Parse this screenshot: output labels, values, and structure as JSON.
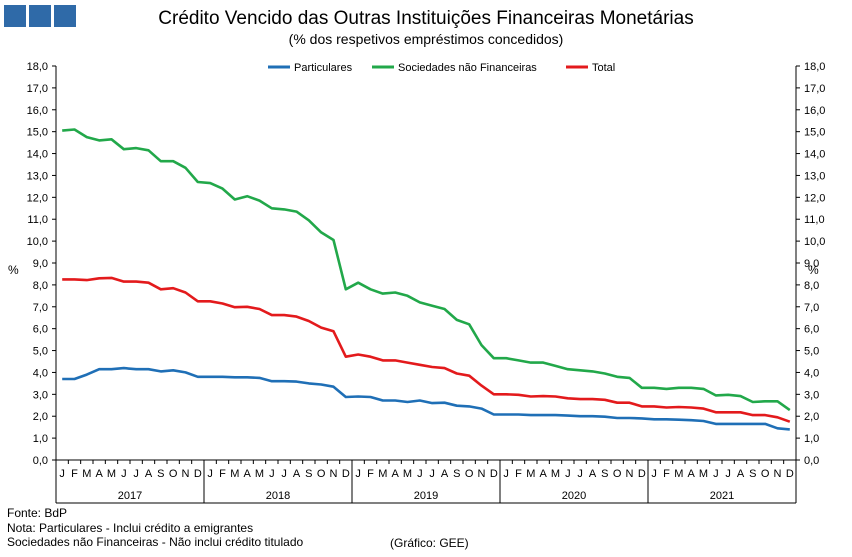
{
  "chart_data": {
    "type": "line",
    "title": "Crédito Vencido das Outras Instituições Financeiras Monetárias",
    "subtitle": "(% dos respetivos empréstimos concedidos)",
    "ylabel": "%",
    "ylabel_right": "%",
    "ylim": [
      0,
      18
    ],
    "yticks": [
      "0,0",
      "1,0",
      "2,0",
      "3,0",
      "4,0",
      "5,0",
      "6,0",
      "7,0",
      "8,0",
      "9,0",
      "10,0",
      "11,0",
      "12,0",
      "13,0",
      "14,0",
      "15,0",
      "16,0",
      "17,0",
      "18,0"
    ],
    "month_labels": [
      "J",
      "F",
      "M",
      "A",
      "M",
      "J",
      "J",
      "A",
      "S",
      "O",
      "N",
      "D"
    ],
    "years": [
      "2017",
      "2018",
      "2019",
      "2020",
      "2021"
    ],
    "legend": [
      "Particulares",
      "Sociedades não Financeiras",
      "Total"
    ],
    "series": [
      {
        "name": "Particulares",
        "color": "#1f6fb6",
        "values": [
          3.7,
          3.7,
          3.9,
          4.15,
          4.15,
          4.2,
          4.15,
          4.15,
          4.05,
          4.1,
          4.0,
          3.8,
          3.8,
          3.8,
          3.78,
          3.78,
          3.75,
          3.6,
          3.6,
          3.58,
          3.5,
          3.45,
          3.35,
          2.88,
          2.9,
          2.88,
          2.72,
          2.72,
          2.65,
          2.72,
          2.6,
          2.62,
          2.48,
          2.45,
          2.35,
          2.08,
          2.08,
          2.08,
          2.05,
          2.05,
          2.05,
          2.03,
          2.0,
          2.0,
          1.98,
          1.92,
          1.92,
          1.9,
          1.86,
          1.86,
          1.84,
          1.82,
          1.78,
          1.65,
          1.65,
          1.65,
          1.65,
          1.65,
          1.45,
          1.4
        ]
      },
      {
        "name": "Sociedades não Financeiras",
        "color": "#22a84a",
        "values": [
          15.05,
          15.1,
          14.75,
          14.6,
          14.65,
          14.2,
          14.25,
          14.15,
          13.65,
          13.65,
          13.35,
          12.7,
          12.65,
          12.4,
          11.9,
          12.05,
          11.85,
          11.5,
          11.45,
          11.35,
          10.95,
          10.4,
          10.05,
          7.8,
          8.1,
          7.8,
          7.6,
          7.65,
          7.5,
          7.2,
          7.05,
          6.9,
          6.4,
          6.2,
          5.25,
          4.65,
          4.65,
          4.55,
          4.45,
          4.45,
          4.3,
          4.15,
          4.1,
          4.05,
          3.95,
          3.8,
          3.75,
          3.3,
          3.3,
          3.25,
          3.3,
          3.3,
          3.25,
          2.95,
          2.98,
          2.92,
          2.65,
          2.68,
          2.68,
          2.28
        ]
      },
      {
        "name": "Total",
        "color": "#e31a1c",
        "values": [
          8.25,
          8.25,
          8.22,
          8.3,
          8.32,
          8.15,
          8.15,
          8.1,
          7.8,
          7.85,
          7.65,
          7.25,
          7.25,
          7.15,
          6.98,
          7.0,
          6.9,
          6.62,
          6.62,
          6.55,
          6.35,
          6.05,
          5.88,
          4.72,
          4.82,
          4.72,
          4.55,
          4.55,
          4.45,
          4.35,
          4.25,
          4.2,
          3.95,
          3.85,
          3.4,
          3.0,
          3.0,
          2.98,
          2.9,
          2.92,
          2.9,
          2.82,
          2.78,
          2.78,
          2.75,
          2.62,
          2.62,
          2.45,
          2.45,
          2.4,
          2.42,
          2.4,
          2.35,
          2.18,
          2.18,
          2.18,
          2.05,
          2.05,
          1.95,
          1.75
        ]
      }
    ]
  },
  "notes": {
    "source": "Fonte: BdP",
    "note1": "Nota: Particulares - Inclui crédito a emigrantes",
    "note2": "Sociedades não Financeiras - Não inclui crédito titulado",
    "credit": "(Gráfico: GEE)"
  }
}
